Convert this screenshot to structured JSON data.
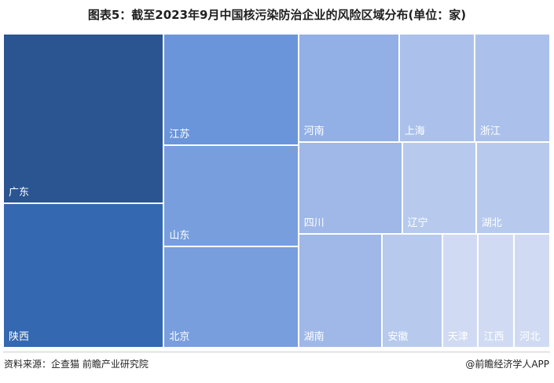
{
  "title": "图表5：截至2023年9月中国核污染防治企业的风险区域分布(单位：家)",
  "source": "资料来源：企查猫 前瞻产业研究院",
  "brand": "@前瞻经济学人APP",
  "colors": {
    "dark": "#2a5591",
    "mid": "#3d78cc",
    "light": "#8aaae4",
    "pale": "#d0dbf3"
  },
  "chart_data": {
    "type": "treemap",
    "title": "图表5：截至2023年9月中国核污染防治企业的风险区域分布(单位：家)",
    "unit": "家",
    "categories": [
      "广东",
      "陕西",
      "江苏",
      "山东",
      "北京",
      "河南",
      "上海",
      "浙江",
      "四川",
      "湖南",
      "辽宁",
      "湖北",
      "安徽",
      "天津",
      "江西",
      "河北"
    ],
    "values": [
      20,
      17,
      11,
      10,
      10,
      8,
      6,
      6,
      7,
      7,
      5,
      5,
      5,
      3,
      3,
      3
    ]
  }
}
